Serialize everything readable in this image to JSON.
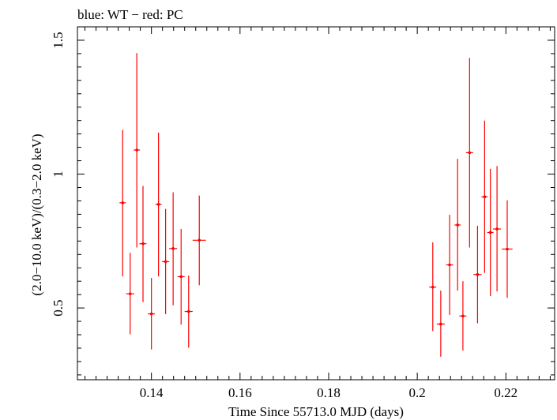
{
  "chart_data": {
    "type": "scatter",
    "title": "blue: WT − red: PC",
    "xlabel": "Time Since 55713.0 MJD (days)",
    "ylabel": "(2.0−10.0 keV)/(0.3−2.0 keV)",
    "xlim": [
      0.1233,
      0.231
    ],
    "ylim": [
      0.232,
      1.55
    ],
    "xticks": [
      0.14,
      0.16,
      0.18,
      0.2,
      0.22
    ],
    "xtick_labels": [
      "0.14",
      "0.16",
      "0.18",
      "0.2",
      "0.22"
    ],
    "yticks": [
      0.5,
      1,
      1.5
    ],
    "ytick_labels": [
      "0.5",
      "1",
      "1.5"
    ],
    "grid": false,
    "series": [
      {
        "color": "#ff0000",
        "points": [
          {
            "x": 0.1335,
            "xerr": 0.0007,
            "y": 0.893,
            "ylo": 0.618,
            "yhi": 1.165
          },
          {
            "x": 0.1352,
            "xerr": 0.0009,
            "y": 0.553,
            "ylo": 0.402,
            "yhi": 0.706
          },
          {
            "x": 0.1367,
            "xerr": 0.0007,
            "y": 1.09,
            "ylo": 0.726,
            "yhi": 1.452
          },
          {
            "x": 0.1381,
            "xerr": 0.0008,
            "y": 0.74,
            "ylo": 0.522,
            "yhi": 0.956
          },
          {
            "x": 0.14,
            "xerr": 0.0008,
            "y": 0.478,
            "ylo": 0.345,
            "yhi": 0.612
          },
          {
            "x": 0.1416,
            "xerr": 0.0007,
            "y": 0.887,
            "ylo": 0.618,
            "yhi": 1.155
          },
          {
            "x": 0.1432,
            "xerr": 0.0008,
            "y": 0.673,
            "ylo": 0.477,
            "yhi": 0.87
          },
          {
            "x": 0.1449,
            "xerr": 0.0009,
            "y": 0.722,
            "ylo": 0.51,
            "yhi": 0.932
          },
          {
            "x": 0.1467,
            "xerr": 0.0008,
            "y": 0.617,
            "ylo": 0.438,
            "yhi": 0.795
          },
          {
            "x": 0.1484,
            "xerr": 0.0009,
            "y": 0.487,
            "ylo": 0.352,
            "yhi": 0.621
          },
          {
            "x": 0.1508,
            "xerr": 0.0015,
            "y": 0.753,
            "ylo": 0.585,
            "yhi": 0.92
          },
          {
            "x": 0.2035,
            "xerr": 0.0008,
            "y": 0.578,
            "ylo": 0.414,
            "yhi": 0.745
          },
          {
            "x": 0.2053,
            "xerr": 0.0009,
            "y": 0.44,
            "ylo": 0.318,
            "yhi": 0.565
          },
          {
            "x": 0.2073,
            "xerr": 0.0008,
            "y": 0.661,
            "ylo": 0.474,
            "yhi": 0.848
          },
          {
            "x": 0.2091,
            "xerr": 0.0007,
            "y": 0.81,
            "ylo": 0.565,
            "yhi": 1.057
          },
          {
            "x": 0.2103,
            "xerr": 0.0008,
            "y": 0.47,
            "ylo": 0.341,
            "yhi": 0.6
          },
          {
            "x": 0.2118,
            "xerr": 0.0008,
            "y": 1.08,
            "ylo": 0.726,
            "yhi": 1.434
          },
          {
            "x": 0.2136,
            "xerr": 0.0009,
            "y": 0.625,
            "ylo": 0.443,
            "yhi": 0.807
          },
          {
            "x": 0.2152,
            "xerr": 0.0007,
            "y": 0.915,
            "ylo": 0.631,
            "yhi": 1.2
          },
          {
            "x": 0.2165,
            "xerr": 0.0007,
            "y": 0.782,
            "ylo": 0.545,
            "yhi": 1.02
          },
          {
            "x": 0.218,
            "xerr": 0.0009,
            "y": 0.795,
            "ylo": 0.562,
            "yhi": 1.03
          },
          {
            "x": 0.2203,
            "xerr": 0.0012,
            "y": 0.72,
            "ylo": 0.538,
            "yhi": 0.902
          }
        ]
      }
    ]
  }
}
